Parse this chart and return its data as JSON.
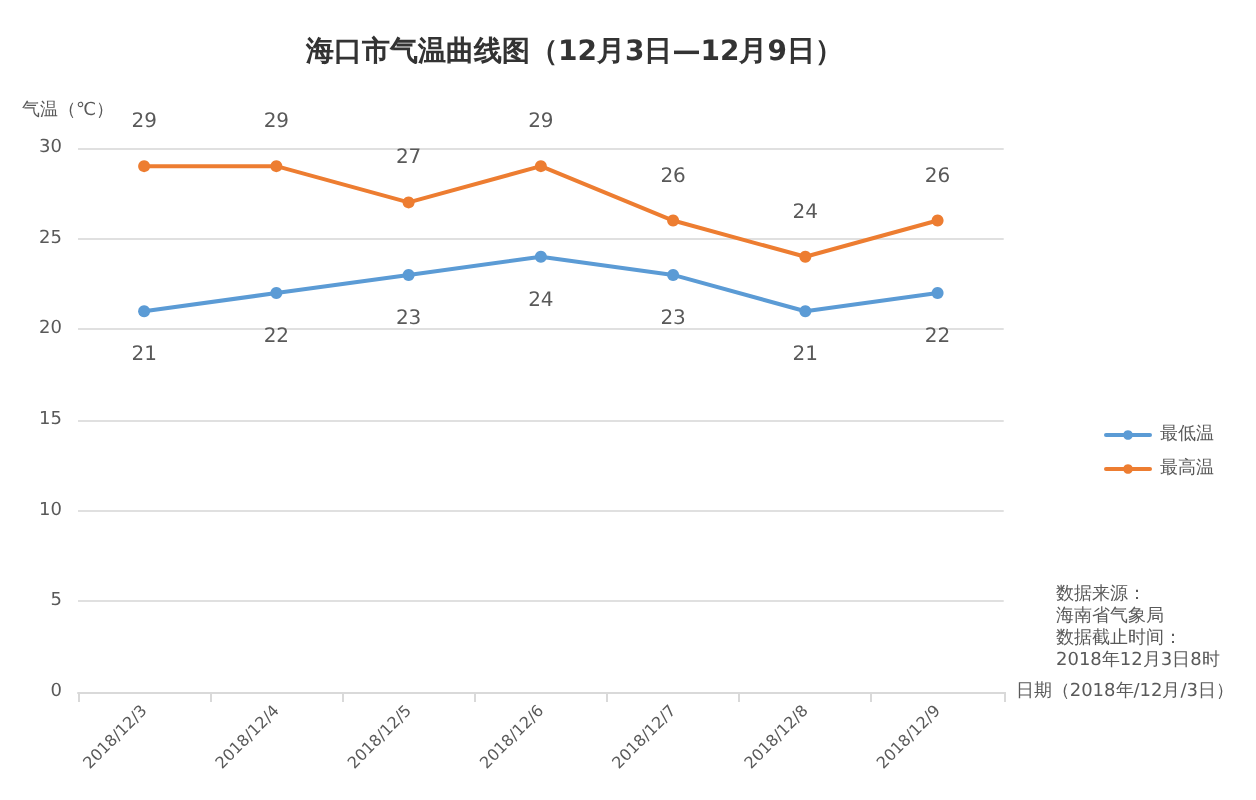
{
  "chart_data": {
    "type": "line",
    "title": "海口市气温曲线图（12月3日—12月9日）",
    "ylabel": "气温（℃）",
    "xlabel": "日期（2018年/12月/3日）",
    "categories": [
      "2018/12/3",
      "2018/12/4",
      "2018/12/5",
      "2018/12/6",
      "2018/12/7",
      "2018/12/8",
      "2018/12/9"
    ],
    "series": [
      {
        "name": "最低温",
        "color": "#5b9bd5",
        "values": [
          21,
          22,
          23,
          24,
          23,
          21,
          22
        ]
      },
      {
        "name": "最高温",
        "color": "#ed7d31",
        "values": [
          29,
          29,
          27,
          29,
          26,
          24,
          26
        ]
      }
    ],
    "ylim": [
      0,
      30
    ],
    "yticks": [
      0,
      5,
      10,
      15,
      20,
      25,
      30
    ],
    "grid": "y",
    "legend": "right",
    "marker": "circle",
    "line_style": "solid",
    "data_labels": true,
    "annotations": [
      "数据来源：",
      "海南省气象局",
      "数据截止时间：",
      "2018年12月3日8时"
    ]
  }
}
